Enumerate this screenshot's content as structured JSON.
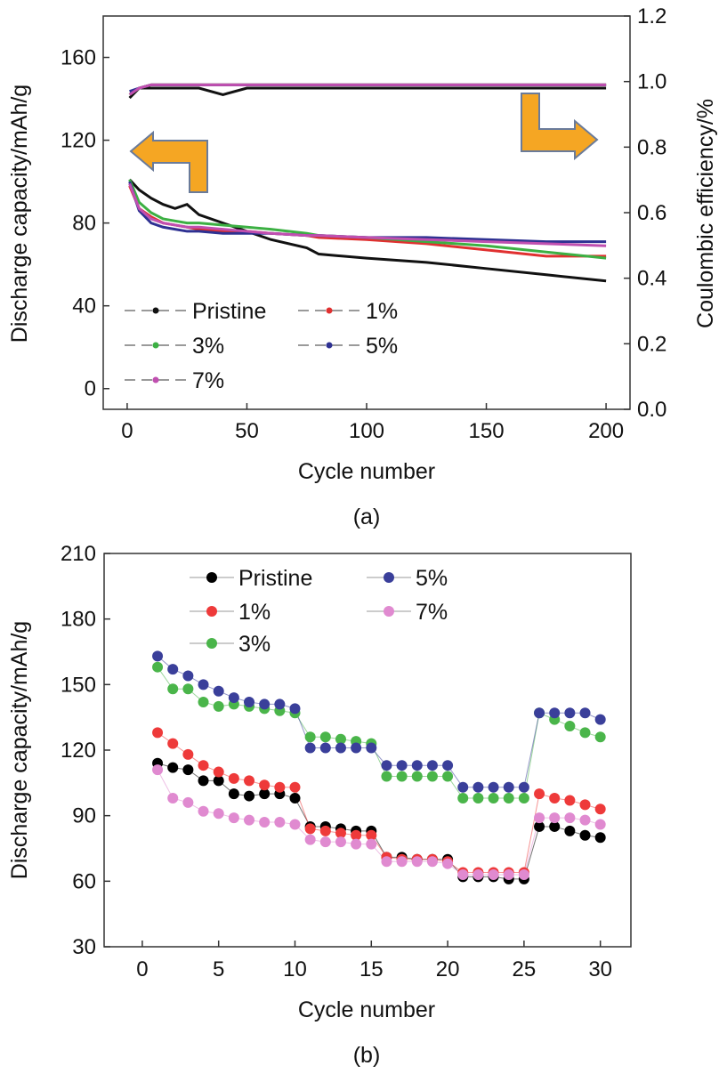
{
  "chart_data": [
    {
      "panel": "(a)",
      "type": "line",
      "xlabel": "Cycle number",
      "ylabel": "Discharge capacity/mAh/g",
      "y2label": "Coulombic efficiency/%",
      "xlim": [
        -10,
        210
      ],
      "ylim": [
        -10,
        180
      ],
      "y2lim": [
        0,
        1.2
      ],
      "xticks": [
        "0",
        "50",
        "100",
        "150",
        "200"
      ],
      "yticks": [
        "0",
        "40",
        "80",
        "120",
        "160"
      ],
      "y2ticks": [
        "0.0",
        "0.2",
        "0.4",
        "0.6",
        "0.8",
        "1.0",
        "1.2"
      ],
      "annotations": [
        "left arrow: capacity curves read on left axis",
        "right arrow: efficiency curves read on right axis"
      ],
      "x": [
        1,
        5,
        10,
        15,
        20,
        25,
        30,
        40,
        50,
        60,
        75,
        80,
        100,
        125,
        150,
        175,
        200
      ],
      "series": [
        {
          "name": "Pristine",
          "color": "#111111",
          "values": [
            101,
            96,
            92,
            89,
            87,
            89,
            84,
            80,
            76,
            72,
            68,
            65,
            63,
            61,
            58,
            55,
            52
          ],
          "efficiency": [
            0.95,
            0.98,
            0.98,
            0.98,
            0.98,
            0.98,
            0.98,
            0.96,
            0.98,
            0.98,
            0.98,
            0.98,
            0.98,
            0.98,
            0.98,
            0.98,
            0.98
          ]
        },
        {
          "name": "1%",
          "color": "#e03030",
          "values": [
            98,
            87,
            83,
            80,
            79,
            78,
            77,
            76,
            76,
            75,
            74,
            73,
            72,
            70,
            67,
            64,
            64
          ],
          "efficiency": [
            0.96,
            0.98,
            0.99,
            0.99,
            0.99,
            0.99,
            0.99,
            0.99,
            0.99,
            0.99,
            0.99,
            0.99,
            0.99,
            0.99,
            0.99,
            0.99,
            0.99
          ]
        },
        {
          "name": "3%",
          "color": "#3cb043",
          "values": [
            101,
            90,
            85,
            82,
            81,
            80,
            80,
            79,
            78,
            77,
            75,
            74,
            73,
            71,
            69,
            66,
            63
          ],
          "efficiency": [
            0.96,
            0.98,
            0.99,
            0.99,
            0.99,
            0.99,
            0.99,
            0.99,
            0.99,
            0.99,
            0.99,
            0.99,
            0.99,
            0.99,
            0.99,
            0.99,
            0.99
          ]
        },
        {
          "name": "5%",
          "color": "#2e3192",
          "values": [
            100,
            86,
            80,
            78,
            77,
            76,
            76,
            75,
            75,
            75,
            74,
            74,
            73,
            73,
            72,
            71,
            71
          ],
          "efficiency": [
            0.97,
            0.98,
            0.99,
            0.99,
            0.99,
            0.99,
            0.99,
            0.99,
            0.99,
            0.99,
            0.99,
            0.99,
            0.99,
            0.99,
            0.99,
            0.99,
            0.99
          ]
        },
        {
          "name": "7%",
          "color": "#c04fb0",
          "values": [
            99,
            87,
            82,
            80,
            79,
            78,
            78,
            77,
            76,
            75,
            74,
            74,
            73,
            72,
            71,
            70,
            69
          ],
          "efficiency": [
            0.96,
            0.98,
            0.99,
            0.99,
            0.99,
            0.99,
            0.99,
            0.99,
            0.99,
            0.99,
            0.99,
            0.99,
            0.99,
            0.99,
            0.99,
            0.99,
            0.99
          ]
        }
      ]
    },
    {
      "panel": "(b)",
      "type": "scatter",
      "xlabel": "Cycle number",
      "ylabel": "Discharge capacity/mAh/g",
      "xlim": [
        -2.5,
        32
      ],
      "ylim": [
        30,
        210
      ],
      "xticks": [
        "0",
        "5",
        "10",
        "15",
        "20",
        "25",
        "30"
      ],
      "yticks": [
        "30",
        "60",
        "90",
        "120",
        "150",
        "180",
        "210"
      ],
      "x": [
        1,
        2,
        3,
        4,
        5,
        6,
        7,
        8,
        9,
        10,
        11,
        12,
        13,
        14,
        15,
        16,
        17,
        18,
        19,
        20,
        21,
        22,
        23,
        24,
        25,
        26,
        27,
        28,
        29,
        30
      ],
      "series": [
        {
          "name": "Pristine",
          "color": "#000000",
          "values": [
            114,
            112,
            111,
            106,
            106,
            100,
            99,
            100,
            100,
            98,
            85,
            85,
            84,
            83,
            83,
            71,
            71,
            70,
            70,
            70,
            62,
            62,
            62,
            61,
            61,
            85,
            85,
            83,
            81,
            80
          ]
        },
        {
          "name": "1%",
          "color": "#ee3a3a",
          "values": [
            128,
            123,
            118,
            113,
            110,
            107,
            106,
            104,
            103,
            103,
            84,
            83,
            82,
            81,
            81,
            71,
            70,
            70,
            70,
            69,
            64,
            64,
            64,
            64,
            64,
            100,
            98,
            97,
            95,
            93
          ]
        },
        {
          "name": "3%",
          "color": "#4ab54a",
          "values": [
            158,
            148,
            148,
            142,
            140,
            141,
            140,
            139,
            138,
            137,
            126,
            126,
            125,
            124,
            123,
            108,
            108,
            108,
            108,
            108,
            98,
            98,
            98,
            98,
            98,
            137,
            134,
            131,
            128,
            126
          ]
        },
        {
          "name": "5%",
          "color": "#3a3f9a",
          "values": [
            163,
            157,
            154,
            150,
            147,
            144,
            142,
            141,
            141,
            139,
            121,
            121,
            121,
            121,
            121,
            113,
            113,
            113,
            113,
            113,
            103,
            103,
            103,
            103,
            103,
            137,
            137,
            137,
            137,
            134
          ]
        },
        {
          "name": "7%",
          "color": "#e08ad0",
          "values": [
            111,
            98,
            96,
            92,
            91,
            89,
            88,
            87,
            87,
            86,
            79,
            78,
            78,
            77,
            77,
            69,
            69,
            69,
            69,
            68,
            63,
            63,
            63,
            63,
            63,
            89,
            89,
            89,
            88,
            86
          ]
        }
      ]
    }
  ],
  "captions": {
    "a": "(a)",
    "b": "(b)"
  }
}
